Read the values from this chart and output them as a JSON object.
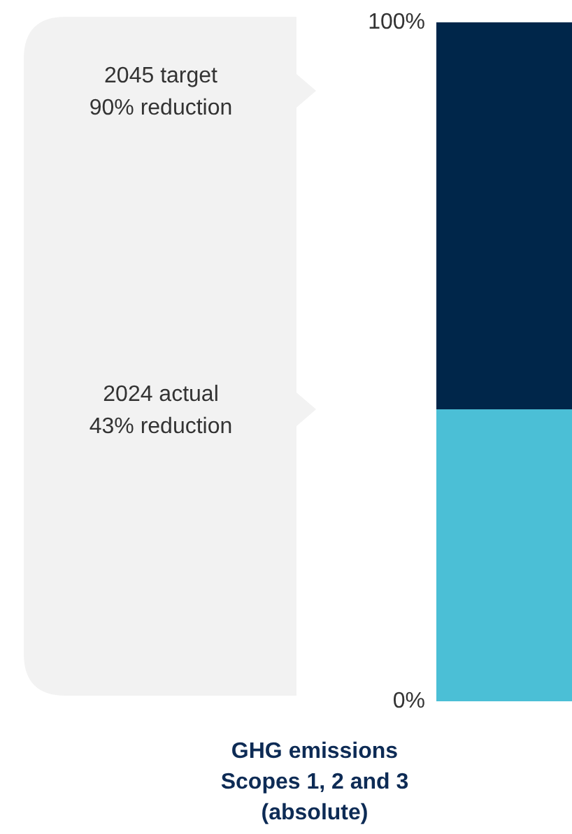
{
  "chart_data": {
    "type": "bar",
    "stacked": true,
    "categories": [
      null
    ],
    "series": [
      {
        "color": "#4bbfd6",
        "values": [
          43
        ]
      },
      {
        "color": "#00264a",
        "values": [
          57
        ]
      }
    ],
    "ylim": [
      0,
      100
    ],
    "yticks": [
      {
        "value": 0,
        "label": "0%"
      },
      {
        "value": 100,
        "label": "100%"
      }
    ],
    "xlabel": "GHG emissions\nScopes 1, 2 and 3\n(absolute)",
    "annotations": [
      "2045 target\n90% reduction",
      "2024 actual\n43% reduction"
    ]
  }
}
